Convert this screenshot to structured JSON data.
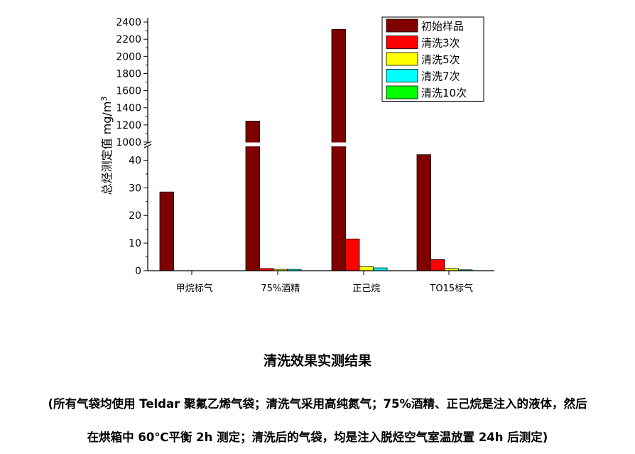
{
  "chart_data": {
    "type": "bar",
    "ylabel": "总烃测定值 mg/m3",
    "y_axis_break": [
      45,
      1000
    ],
    "ylim_lower": [
      0,
      45
    ],
    "ylim_upper": [
      1000,
      2450
    ],
    "yticks_lower": [
      "0",
      "10",
      "20",
      "30",
      "40"
    ],
    "yticks_upper": [
      "1000",
      "1200",
      "1400",
      "1600",
      "1800",
      "2000",
      "2200",
      "2400"
    ],
    "categories": [
      "甲烷标气",
      "75%酒精",
      "正己烷",
      "TO15标气"
    ],
    "series": [
      {
        "name": "初始样品",
        "color": "#800000",
        "values": [
          28.5,
          1245,
          2315,
          42
        ]
      },
      {
        "name": "清洗3次",
        "color": "#ff0000",
        "values": [
          0,
          0.8,
          11.5,
          4
        ]
      },
      {
        "name": "清洗5次",
        "color": "#ffff00",
        "values": [
          0,
          0.5,
          1.5,
          0.8
        ]
      },
      {
        "name": "清洗7次",
        "color": "#00ffff",
        "values": [
          0,
          0.5,
          1,
          0.3
        ]
      },
      {
        "name": "清洗10次",
        "color": "#00ff00",
        "values": [
          0,
          0,
          0,
          0
        ]
      }
    ],
    "legend_position": "top-right",
    "grid": false
  },
  "caption": {
    "title": "清洗效果实测结果",
    "line1": "(所有气袋均使用 Teldar 聚氟乙烯气袋；清洗气采用高纯氮气；75%酒精、正己烷是注入的液体，然后",
    "line2": "在烘箱中 60℃平衡 2h 测定；清洗后的气袋，均是注入脱烃空气室温放置 24h 后测定)"
  }
}
